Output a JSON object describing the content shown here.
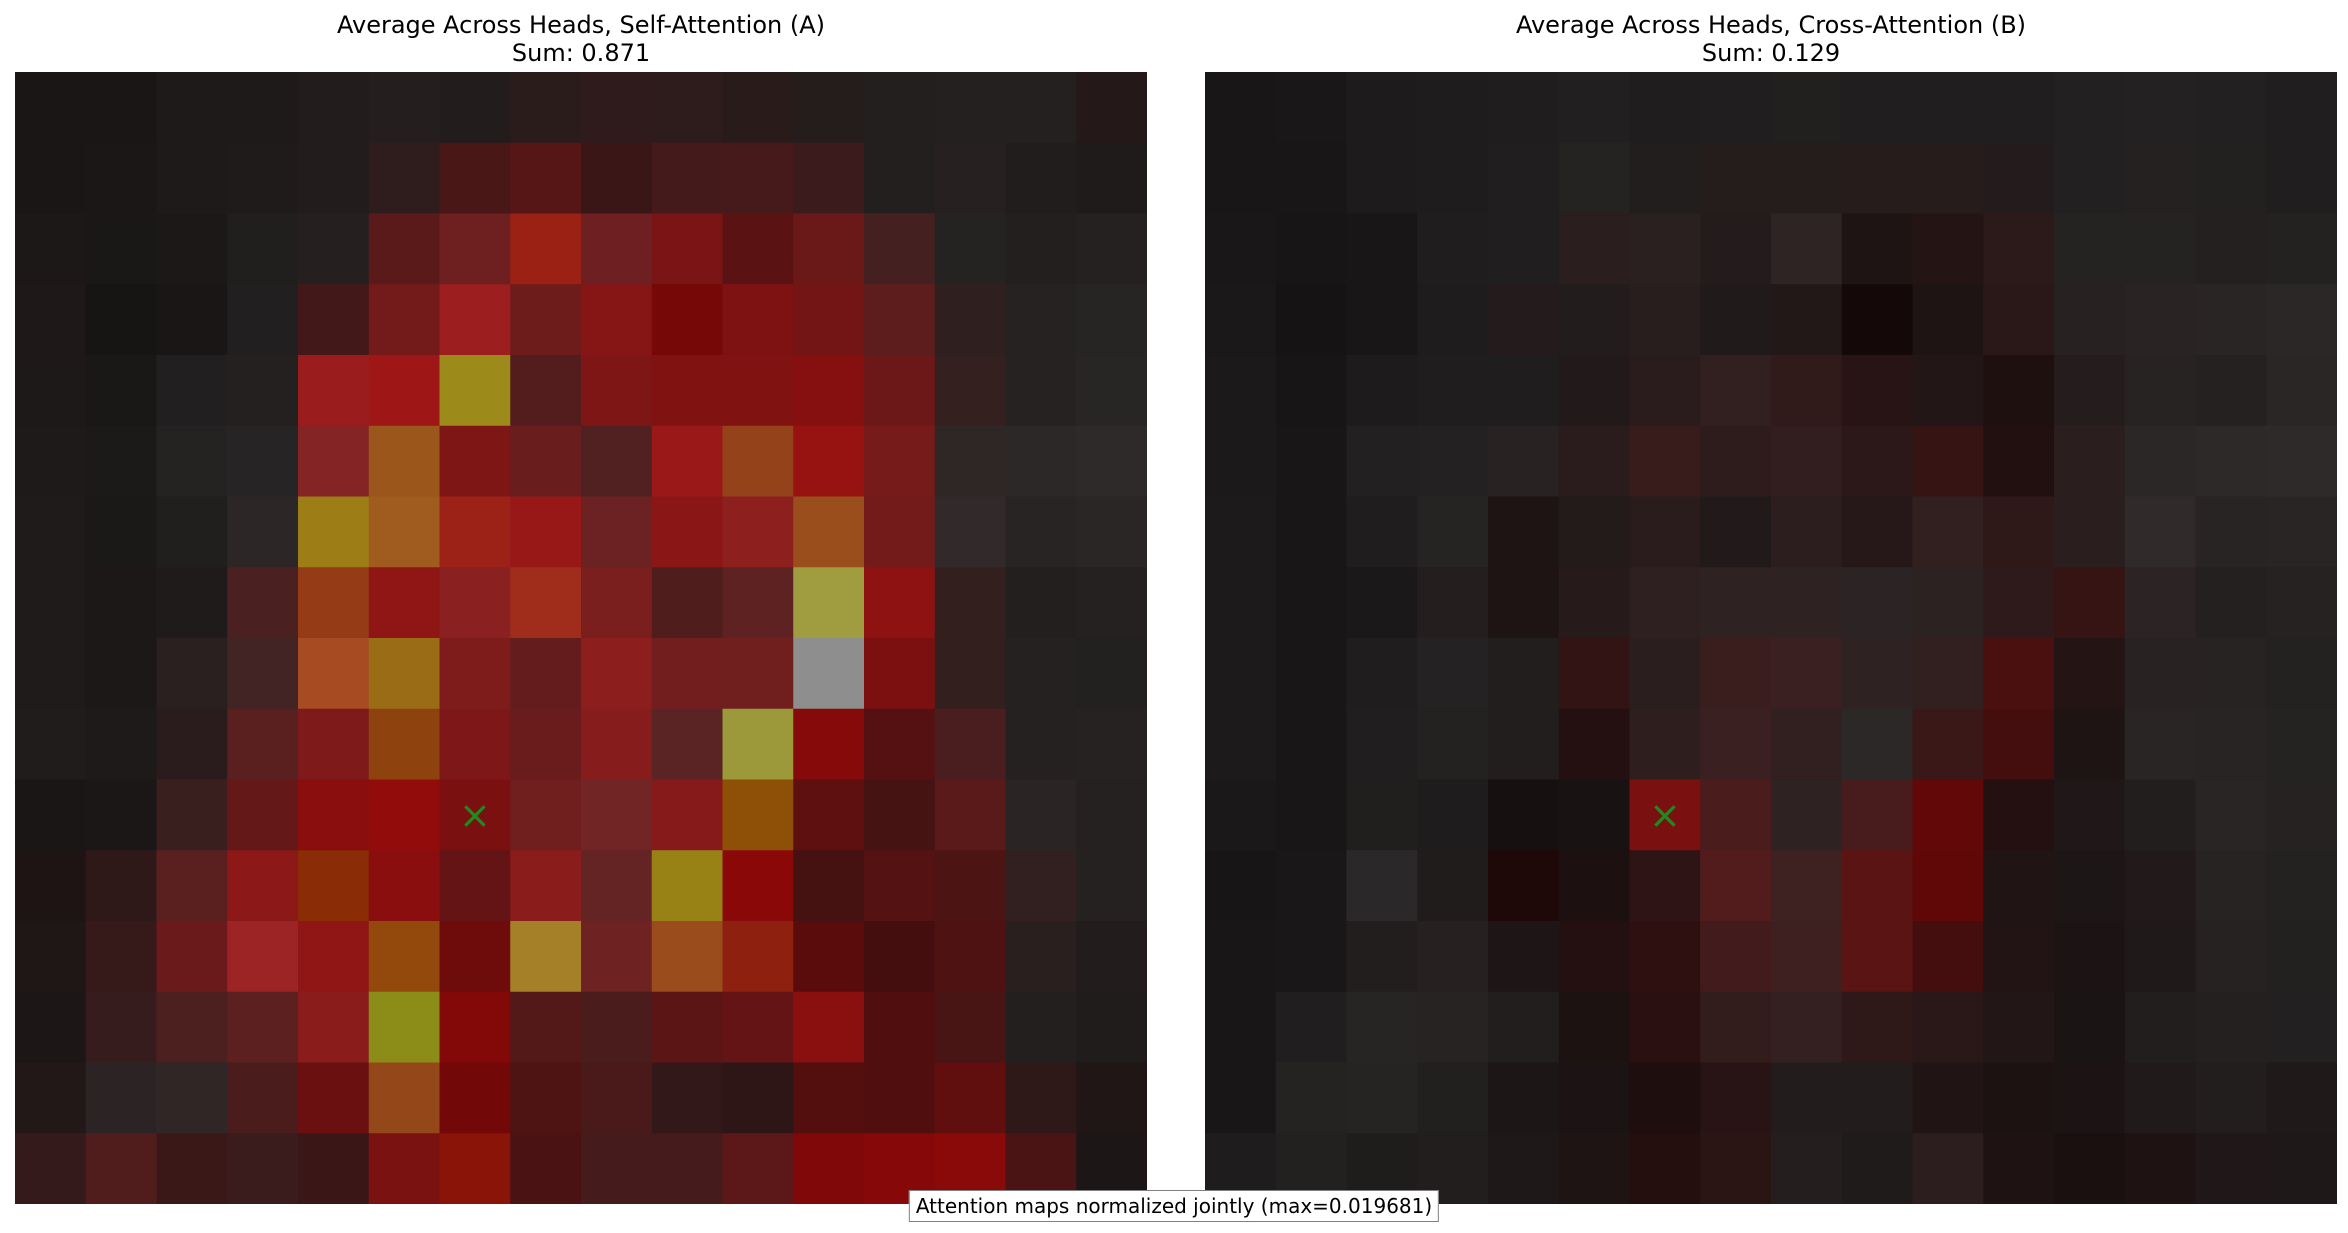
{
  "note": "Attention maps normalized jointly (max=0.019681)",
  "marker": "×",
  "chart_data": [
    {
      "type": "heatmap",
      "title": "Average Across Heads, Self-Attention (A)",
      "subtitle": "Sum: 0.871",
      "grid": [
        16,
        16
      ],
      "marker_cell": {
        "row": 10,
        "col": 6
      },
      "cells": [
        [
          "#1b1616",
          "#1a1616",
          "#1f1a1a",
          "#1e1a1a",
          "#221c1c",
          "#251e1e",
          "#231c1c",
          "#2b1c1c",
          "#2f1b1b",
          "#2e1b1b",
          "#2a1b1b",
          "#251c1c",
          "#231f1f",
          "#252020",
          "#242020",
          "#241818"
        ],
        [
          "#1a1616",
          "#1b1717",
          "#1f1a1a",
          "#201b1b",
          "#221c1c",
          "#2f1d1d",
          "#4a1717",
          "#561616",
          "#3a1616",
          "#451a1a",
          "#461a1a",
          "#3b1b1b",
          "#231f1f",
          "#262020",
          "#221d1d",
          "#201b1b"
        ],
        [
          "#1c1818",
          "#1a1717",
          "#1c1818",
          "#211e1e",
          "#251f1f",
          "#5a1a1a",
          "#6e1f1f",
          "#9a2114",
          "#6e1f22",
          "#7b1414",
          "#5a1212",
          "#6a1818",
          "#442020",
          "#252222",
          "#231f1f",
          "#252121"
        ],
        [
          "#1f1818",
          "#171414",
          "#1a1616",
          "#211f1f",
          "#431818",
          "#731a1a",
          "#9c1e1e",
          "#6d1b1b",
          "#861616",
          "#760808",
          "#7e1212",
          "#741515",
          "#5e1d1d",
          "#2f1f1f",
          "#272222",
          "#272424"
        ],
        [
          "#1e1919",
          "#1a1717",
          "#211f1f",
          "#242020",
          "#9a1c1c",
          "#9e1616",
          "#9c8b1a",
          "#541d1d",
          "#7e1616",
          "#801212",
          "#801212",
          "#860f0f",
          "#6c1818",
          "#352020",
          "#262222",
          "#282525"
        ],
        [
          "#1e1a1a",
          "#1c1919",
          "#252222",
          "#262424",
          "#842424",
          "#9b561b",
          "#7e1616",
          "#6a1d1d",
          "#512020",
          "#9a1818",
          "#94421a",
          "#961312",
          "#761a1a",
          "#2f2626",
          "#2c2828",
          "#2e2a2a"
        ],
        [
          "#1f1b1b",
          "#1b1818",
          "#211e1e",
          "#2c2626",
          "#9c7d16",
          "#a05b1e",
          "#9c2218",
          "#981818",
          "#6c2222",
          "#8a1616",
          "#8e1f1f",
          "#9a4e1b",
          "#731b1b",
          "#322a2a",
          "#282424",
          "#2a2626"
        ],
        [
          "#1f1b1b",
          "#1c1818",
          "#201b1b",
          "#4a2020",
          "#953c16",
          "#901616",
          "#8a2020",
          "#a02c1c",
          "#7a1e1e",
          "#501d1d",
          "#5e2222",
          "#a09c40",
          "#8e1212",
          "#341f1f",
          "#241f1f",
          "#262121"
        ],
        [
          "#1f1b1b",
          "#1c1818",
          "#2a2020",
          "#432424",
          "#a64b22",
          "#9a6c16",
          "#7e1c1c",
          "#651c1c",
          "#8c1e1e",
          "#721e1e",
          "#701e1e",
          "#8e8e8e",
          "#7c1010",
          "#341f1f",
          "#252121",
          "#232020"
        ],
        [
          "#201c1c",
          "#1e1a1a",
          "#2a1c1c",
          "#5a2020",
          "#7f1a1a",
          "#8e420e",
          "#7e1818",
          "#6a1b1b",
          "#861c1c",
          "#5a2424",
          "#9c993a",
          "#870a0a",
          "#551111",
          "#4a1e1e",
          "#252121",
          "#262222"
        ],
        [
          "#1a1616",
          "#1b1717",
          "#3a1f1f",
          "#641818",
          "#8a0e0e",
          "#930c0c",
          "#7b1010",
          "#701e1e",
          "#712525",
          "#861a1a",
          "#8e5006",
          "#5e1010",
          "#461313",
          "#5a1a1a",
          "#2b2424",
          "#252121"
        ],
        [
          "#1e1414",
          "#2e1818",
          "#5a2020",
          "#8c1818",
          "#8a2c06",
          "#8a0e0e",
          "#641414",
          "#8a1c1c",
          "#652424",
          "#988216",
          "#8a0808",
          "#451111",
          "#541212",
          "#4d1414",
          "#322020",
          "#262121"
        ],
        [
          "#1f1616",
          "#361a1a",
          "#6a1a1a",
          "#9c2424",
          "#901515",
          "#93480c",
          "#6e0c0c",
          "#a58028",
          "#6e2222",
          "#9a4c1c",
          "#8e2010",
          "#5a0c0c",
          "#450e0e",
          "#4e1212",
          "#291f1f",
          "#221c1c"
        ],
        [
          "#1d1616",
          "#361c1c",
          "#4d2020",
          "#5c2020",
          "#8a1c1c",
          "#8c8c18",
          "#830808",
          "#531818",
          "#4a1c1c",
          "#5c1515",
          "#641414",
          "#8a1010",
          "#500e0e",
          "#481414",
          "#241f1f",
          "#201c1c"
        ],
        [
          "#221818",
          "#2c2424",
          "#302626",
          "#4a1c1c",
          "#6b1010",
          "#94481a",
          "#720808",
          "#4e1414",
          "#4a1a1a",
          "#321818",
          "#2e1616",
          "#530e0e",
          "#500e0e",
          "#600e0e",
          "#2e1818",
          "#201616"
        ],
        [
          "#341a1a",
          "#501c1c",
          "#3a1818",
          "#3a1c1c",
          "#3a1616",
          "#7a1212",
          "#8a1408",
          "#4a1212",
          "#461b1b",
          "#461b1b",
          "#5c1818",
          "#800808",
          "#860808",
          "#8a0a0a",
          "#4a1414",
          "#1c1616"
        ]
      ]
    },
    {
      "type": "heatmap",
      "title": "Average Across Heads, Cross-Attention (B)",
      "subtitle": "Sum: 0.129",
      "grid": [
        16,
        16
      ],
      "marker_cell": {
        "row": 10,
        "col": 6
      },
      "cells": [
        [
          "#181616",
          "#191717",
          "#1d1b1b",
          "#1e1c1c",
          "#1f1d1d",
          "#211f1f",
          "#1f1d1d",
          "#201e1e",
          "#221f1f",
          "#201e1e",
          "#201e1e",
          "#201e1e",
          "#222020",
          "#232121",
          "#222020",
          "#201e1e"
        ],
        [
          "#181616",
          "#181616",
          "#1d1b1b",
          "#1e1c1c",
          "#201e1e",
          "#252222",
          "#231e1e",
          "#251c1c",
          "#251c1c",
          "#271c1c",
          "#271c1c",
          "#241c1c",
          "#222020",
          "#252121",
          "#232020",
          "#201e1e"
        ],
        [
          "#191717",
          "#171515",
          "#181616",
          "#1f1d1d",
          "#201e1e",
          "#2a1e1e",
          "#2b2020",
          "#241c1c",
          "#2e2424",
          "#1e1414",
          "#241414",
          "#2c1a1a",
          "#252222",
          "#252222",
          "#242020",
          "#242121"
        ],
        [
          "#1a1818",
          "#151313",
          "#181616",
          "#1e1c1c",
          "#241c1c",
          "#221c1c",
          "#281e1e",
          "#201a1a",
          "#221818",
          "#150808",
          "#1e1414",
          "#2a1818",
          "#272121",
          "#292323",
          "#2a2525",
          "#2c2727"
        ],
        [
          "#1b1919",
          "#171515",
          "#1d1b1b",
          "#1f1d1d",
          "#1f1d1d",
          "#221a1a",
          "#2a1c1c",
          "#321f1f",
          "#301a1a",
          "#281414",
          "#221616",
          "#1f1010",
          "#251d1d",
          "#282323",
          "#252121",
          "#2a2626"
        ],
        [
          "#1b1919",
          "#181616",
          "#222020",
          "#232121",
          "#282222",
          "#2a1c1c",
          "#381c1c",
          "#2e1c1c",
          "#321e1e",
          "#2c1818",
          "#361414",
          "#221010",
          "#2a1e1e",
          "#2c2727",
          "#2e2929",
          "#2f2a2a"
        ],
        [
          "#1c1a1a",
          "#181616",
          "#1f1d1d",
          "#262323",
          "#1e1414",
          "#231a1a",
          "#2a1c1c",
          "#221a1a",
          "#2c1e1e",
          "#261818",
          "#322020",
          "#2e1818",
          "#2a1e1e",
          "#312a2a",
          "#282424",
          "#292525"
        ],
        [
          "#1c1a1a",
          "#181616",
          "#1a1818",
          "#241e1e",
          "#1e1414",
          "#261a1a",
          "#2e2020",
          "#2e2222",
          "#2e2222",
          "#2c2424",
          "#2c2222",
          "#2e1a1a",
          "#361414",
          "#2c2424",
          "#242020",
          "#262222"
        ],
        [
          "#1c1a1a",
          "#181616",
          "#1f1d1d",
          "#242222",
          "#221e1e",
          "#321414",
          "#2a1e1e",
          "#3a1e1e",
          "#3a2020",
          "#2e2222",
          "#322020",
          "#4a1010",
          "#241414",
          "#282222",
          "#272323",
          "#242121"
        ],
        [
          "#1c1a1a",
          "#181616",
          "#201e1e",
          "#242121",
          "#221e1e",
          "#241010",
          "#2e1e1e",
          "#3a2020",
          "#322020",
          "#2c2828",
          "#3a1818",
          "#450e0e",
          "#1e1414",
          "#292525",
          "#282424",
          "#252222"
        ],
        [
          "#1a1818",
          "#181616",
          "#211e1e",
          "#1e1c1c",
          "#161010",
          "#181212",
          "#7a1010",
          "#4a1c1c",
          "#2e2222",
          "#481c1c",
          "#620808",
          "#241010",
          "#201818",
          "#221e1e",
          "#2a2525",
          "#262222"
        ],
        [
          "#171515",
          "#191717",
          "#2a2828",
          "#201c1c",
          "#1e0808",
          "#1c1010",
          "#2e1414",
          "#521c1c",
          "#3e2222",
          "#5a1414",
          "#600808",
          "#201414",
          "#1c1616",
          "#221a1a",
          "#272323",
          "#242121"
        ],
        [
          "#181616",
          "#191717",
          "#221e1e",
          "#262020",
          "#1e1616",
          "#241010",
          "#2e1010",
          "#421c1c",
          "#3e2020",
          "#5a1414",
          "#440e0e",
          "#221414",
          "#1c1414",
          "#1f1919",
          "#262222",
          "#232020"
        ],
        [
          "#181616",
          "#201e1e",
          "#272424",
          "#272323",
          "#221e1e",
          "#1c1212",
          "#2a1010",
          "#321c1c",
          "#342020",
          "#2e1818",
          "#2a1818",
          "#221616",
          "#1a1414",
          "#221e1e",
          "#242020",
          "#222020"
        ],
        [
          "#181616",
          "#252222",
          "#262323",
          "#221f1f",
          "#1c1616",
          "#1c1414",
          "#1e0e0e",
          "#281414",
          "#221c1c",
          "#221c1c",
          "#201414",
          "#1c1212",
          "#1c1414",
          "#201a1a",
          "#221e1e",
          "#201919"
        ],
        [
          "#1e1c1c",
          "#232020",
          "#1f1c1c",
          "#221e1e",
          "#1e1818",
          "#1e1414",
          "#240e0e",
          "#2a1414",
          "#241e1e",
          "#1f1b1b",
          "#2c1e1e",
          "#1e1212",
          "#1a1010",
          "#1e1212",
          "#201818",
          "#1e1818"
        ]
      ]
    }
  ]
}
